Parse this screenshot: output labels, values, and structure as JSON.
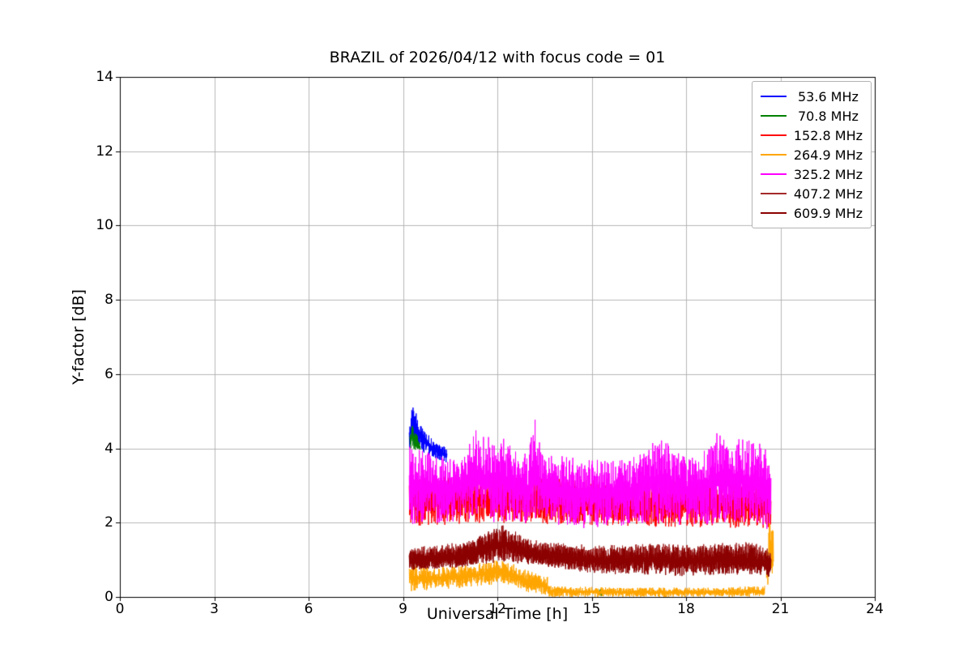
{
  "chart_data": {
    "type": "line",
    "title": "BRAZIL of 2026/04/12 with focus code = 01",
    "xlabel": "Universal Time [h]",
    "ylabel": "Y-factor [dB]",
    "xlim": [
      0,
      24
    ],
    "ylim": [
      0,
      14
    ],
    "xticks": [
      0,
      3,
      6,
      9,
      12,
      15,
      18,
      21,
      24
    ],
    "yticks": [
      0,
      2,
      4,
      6,
      8,
      10,
      12,
      14
    ],
    "grid": true,
    "grid_color": "#b0b0b0",
    "legend": {
      "position": "upper right",
      "border_color": "#b3b3b3"
    },
    "x_data_range": [
      9.2,
      20.75
    ],
    "series": [
      {
        "name": "53.6 MHz",
        "label": " 53.6 MHz",
        "color": "#0000ff",
        "segments": [
          {
            "x": [
              9.2,
              9.28,
              9.4,
              9.6,
              9.85,
              10.1,
              10.4
            ],
            "top": [
              4.6,
              5.25,
              5.0,
              4.6,
              4.35,
              4.15,
              4.0
            ],
            "bottom": [
              4.0,
              4.1,
              4.0,
              3.9,
              3.8,
              3.7,
              3.6
            ]
          }
        ]
      },
      {
        "name": "70.8 MHz",
        "label": " 70.8 MHz",
        "color": "#008000",
        "segments": [
          {
            "x": [
              9.22,
              9.3,
              9.42,
              9.55
            ],
            "top": [
              4.35,
              4.62,
              4.45,
              4.15
            ],
            "bottom": [
              3.95,
              4.0,
              3.95,
              3.9
            ]
          },
          {
            "x": [
              15.25,
              15.35
            ],
            "top": [
              0.25,
              0.18
            ],
            "bottom": [
              0.02,
              0.02
            ]
          }
        ]
      },
      {
        "name": "152.8 MHz",
        "label": "152.8 MHz",
        "color": "#ff0000",
        "segments": [
          {
            "x": [
              9.2,
              12.0,
              16.0,
              20.7
            ],
            "top": [
              3.2,
              3.3,
              3.1,
              3.15
            ],
            "bottom": [
              1.9,
              2.0,
              1.9,
              1.85
            ]
          }
        ]
      },
      {
        "name": "264.9 MHz",
        "label": "264.9 MHz",
        "color": "#ffa500",
        "segments": [
          {
            "x": [
              9.2,
              10.0,
              11.0,
              12.0,
              12.5,
              13.0,
              13.6
            ],
            "top": [
              0.9,
              0.8,
              0.85,
              1.0,
              0.9,
              0.7,
              0.55
            ],
            "bottom": [
              0.15,
              0.2,
              0.25,
              0.35,
              0.3,
              0.12,
              0.05
            ]
          },
          {
            "x": [
              13.6,
              16.0,
              19.0,
              20.5
            ],
            "top": [
              0.3,
              0.25,
              0.25,
              0.3
            ],
            "bottom": [
              0.0,
              0.0,
              0.0,
              0.0
            ]
          },
          {
            "x": [
              20.55,
              20.65,
              20.78
            ],
            "top": [
              1.3,
              2.15,
              1.95
            ],
            "bottom": [
              0.2,
              0.4,
              0.3
            ]
          }
        ]
      },
      {
        "name": "325.2 MHz",
        "label": "325.2 MHz",
        "color": "#ff00ff",
        "segments": [
          {
            "x": [
              9.2,
              9.5,
              10.0,
              10.5,
              11.0,
              11.3,
              11.6,
              12.0,
              12.3,
              12.7,
              13.0,
              13.2,
              13.4,
              14.0,
              14.5,
              15.0,
              15.5,
              16.0,
              16.5,
              17.0,
              17.3,
              17.7,
              18.0,
              18.5,
              19.0,
              19.4,
              19.8,
              20.2,
              20.5,
              20.7
            ],
            "top": [
              4.1,
              4.0,
              3.9,
              3.75,
              4.0,
              4.55,
              4.3,
              4.45,
              4.2,
              3.9,
              3.85,
              5.15,
              3.85,
              3.8,
              3.75,
              3.7,
              3.75,
              3.7,
              3.8,
              4.25,
              4.4,
              3.9,
              3.85,
              3.9,
              4.45,
              4.2,
              4.35,
              4.1,
              4.3,
              3.65
            ],
            "bottom": [
              1.9,
              2.0,
              2.0,
              2.0,
              2.1,
              2.1,
              2.05,
              2.0,
              2.0,
              1.95,
              1.95,
              2.0,
              1.95,
              1.9,
              1.85,
              1.85,
              1.9,
              1.9,
              1.95,
              2.0,
              2.0,
              1.95,
              1.9,
              1.9,
              2.0,
              2.0,
              2.0,
              1.95,
              1.85,
              1.7
            ]
          }
        ]
      },
      {
        "name": "407.2 MHz",
        "label": "407.2 MHz",
        "color": "#a52a2a",
        "segments": [
          {
            "x": [
              9.2,
              10.0,
              11.0,
              11.8,
              12.2,
              12.6,
              13.0,
              14.0,
              15.0,
              16.0,
              17.0,
              18.0,
              19.0,
              20.0,
              20.7
            ],
            "top": [
              1.35,
              1.4,
              1.5,
              1.75,
              1.85,
              1.7,
              1.55,
              1.45,
              1.4,
              1.4,
              1.45,
              1.4,
              1.45,
              1.5,
              1.3
            ],
            "bottom": [
              0.75,
              0.8,
              0.85,
              0.95,
              1.0,
              0.95,
              0.9,
              0.8,
              0.75,
              0.7,
              0.7,
              0.65,
              0.7,
              0.7,
              0.6
            ]
          }
        ]
      },
      {
        "name": "609.9 MHz",
        "label": "609.9 MHz",
        "color": "#8b0000",
        "segments": [
          {
            "x": [
              9.2,
              10.0,
              11.0,
              11.8,
              12.2,
              12.6,
              13.0,
              14.0,
              15.0,
              16.0,
              17.0,
              18.0,
              19.0,
              20.0,
              20.7
            ],
            "top": [
              1.25,
              1.3,
              1.45,
              1.8,
              1.95,
              1.75,
              1.5,
              1.4,
              1.3,
              1.35,
              1.4,
              1.35,
              1.4,
              1.4,
              1.25
            ],
            "bottom": [
              0.7,
              0.75,
              0.8,
              0.9,
              0.95,
              0.9,
              0.85,
              0.75,
              0.65,
              0.6,
              0.6,
              0.55,
              0.6,
              0.6,
              0.5
            ]
          }
        ]
      }
    ]
  }
}
